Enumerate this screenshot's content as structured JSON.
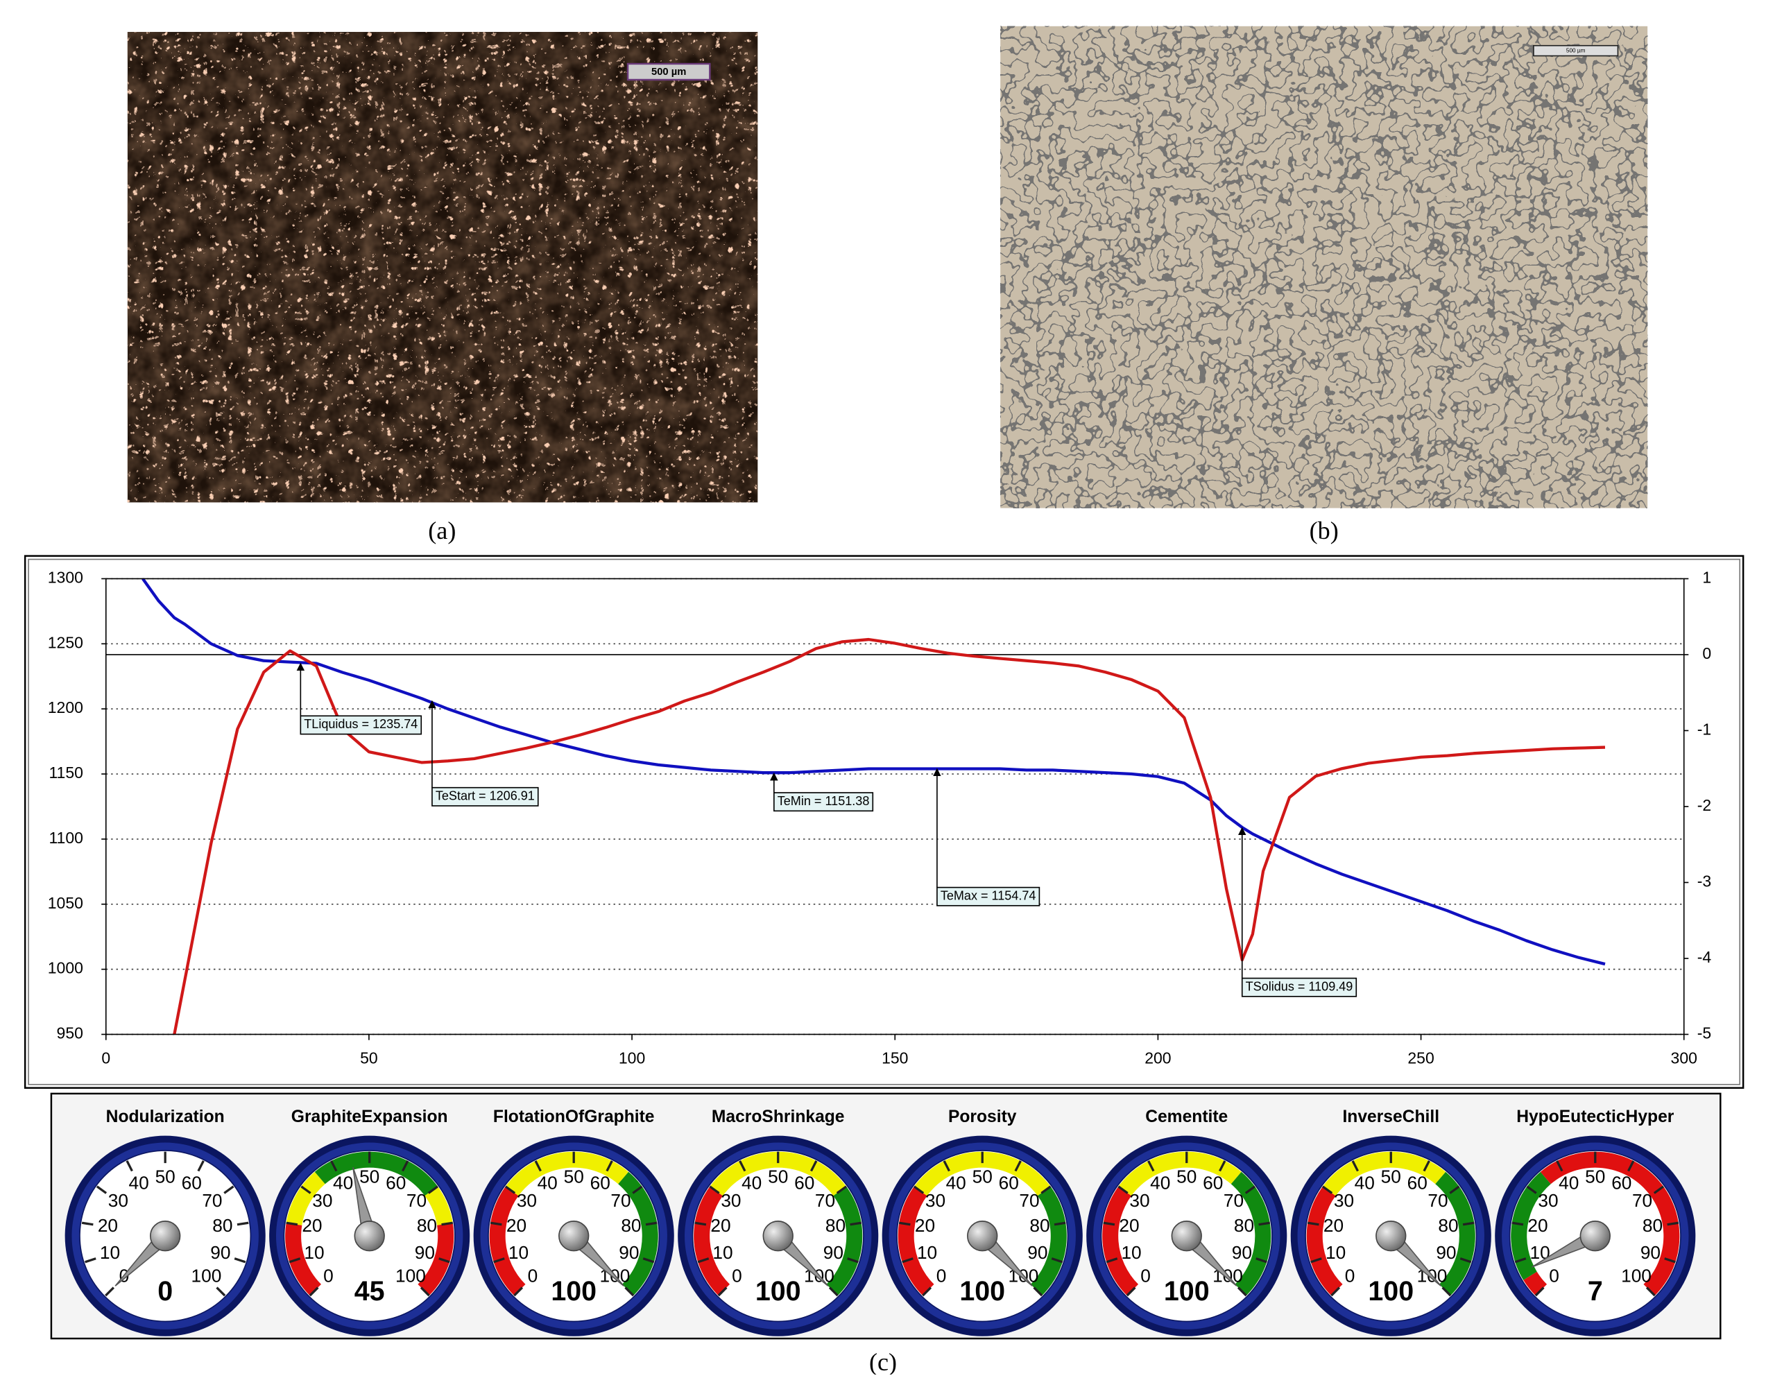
{
  "figure": {
    "panel_labels": [
      "(a)",
      "(b)",
      "(c)"
    ],
    "scale_bars": [
      "500 µm",
      "500 µm"
    ]
  },
  "chart_data": [
    {
      "type": "line",
      "x": [
        7,
        10,
        13,
        15,
        20,
        25,
        30,
        35,
        40,
        45,
        50,
        55,
        60,
        65,
        70,
        75,
        80,
        85,
        90,
        95,
        100,
        105,
        110,
        115,
        120,
        125,
        130,
        135,
        140,
        145,
        150,
        155,
        160,
        165,
        170,
        175,
        180,
        185,
        190,
        195,
        200,
        205,
        210,
        213,
        216,
        218,
        220,
        225,
        230,
        235,
        240,
        245,
        250,
        255,
        260,
        265,
        270,
        275,
        280,
        285
      ],
      "series": [
        {
          "color": "#1010c0",
          "values": [
            1300,
            1283,
            1270,
            1265,
            1250,
            1241,
            1237,
            1236,
            1235,
            1228,
            1222,
            1215,
            1208,
            1200,
            1193,
            1186,
            1180,
            1174,
            1169,
            1164,
            1160,
            1157,
            1155,
            1153,
            1152,
            1151,
            1151,
            1152,
            1153,
            1154,
            1154,
            1154,
            1154,
            1154,
            1154,
            1153,
            1153,
            1152,
            1151,
            1150,
            1148,
            1143,
            1130,
            1118,
            1109,
            1104,
            1100,
            1090,
            1081,
            1073,
            1066,
            1059,
            1052,
            1045,
            1037,
            1030,
            1022,
            1015,
            1009,
            1004
          ]
        },
        {
          "color": "#d01818",
          "axis": "y2",
          "values": [
            null,
            null,
            -5,
            -4.28,
            -2.48,
            -0.98,
            -0.23,
            0.05,
            -0.15,
            -0.98,
            -1.28,
            -1.35,
            -1.42,
            -1.4,
            -1.37,
            -1.3,
            -1.23,
            -1.15,
            -1.06,
            -0.96,
            -0.85,
            -0.75,
            -0.61,
            -0.5,
            -0.36,
            -0.23,
            -0.09,
            0.08,
            0.17,
            0.2,
            0.15,
            0.08,
            0.02,
            -0.02,
            -0.05,
            -0.08,
            -0.11,
            -0.15,
            -0.23,
            -0.33,
            -0.48,
            -0.83,
            -1.88,
            -3.08,
            -4.02,
            -3.68,
            -2.85,
            -1.88,
            -1.6,
            -1.5,
            -1.43,
            -1.39,
            -1.35,
            -1.33,
            -1.3,
            -1.28,
            -1.26,
            -1.24,
            -1.23,
            -1.22
          ]
        }
      ],
      "xlim": [
        0,
        300
      ],
      "xticks": [
        0,
        50,
        100,
        150,
        200,
        250,
        300
      ],
      "ylim": [
        950,
        1300
      ],
      "yticks": [
        950,
        1000,
        1050,
        1100,
        1150,
        1200,
        1250,
        1300
      ],
      "y2lim": [
        -5,
        1
      ],
      "y2ticks": [
        -5,
        -4,
        -3,
        -2,
        -1,
        0,
        1
      ],
      "grid": true,
      "annotations": [
        {
          "text": "TLiquidus = 1235.74",
          "x": 37,
          "y": 1235.74
        },
        {
          "text": "TeStart = 1206.91",
          "x": 62,
          "y": 1206.91
        },
        {
          "text": "TeMin = 1151.38",
          "x": 127,
          "y": 1151.38
        },
        {
          "text": "TeMax = 1154.74",
          "x": 158,
          "y": 1154.74
        },
        {
          "text": "TSolidus = 1109.49",
          "x": 216,
          "y": 1109.49
        }
      ]
    },
    {
      "type": "gauge",
      "categories": [
        "Nodularization",
        "GraphiteExpansion",
        "FlotationOfGraphite",
        "MacroShrinkage",
        "Porosity",
        "Cementite",
        "InverseChill",
        "HypoEutecticHyper"
      ],
      "values": [
        0,
        45,
        100,
        100,
        100,
        100,
        100,
        7
      ],
      "range": [
        0,
        100
      ],
      "ticks": [
        0,
        10,
        20,
        30,
        40,
        50,
        60,
        70,
        80,
        90,
        100
      ],
      "bands": [
        [],
        [
          {
            "from": 0,
            "to": 20,
            "color": "#e01010"
          },
          {
            "from": 20,
            "to": 35,
            "color": "#f0f000"
          },
          {
            "from": 35,
            "to": 70,
            "color": "#108a10"
          },
          {
            "from": 70,
            "to": 80,
            "color": "#f0f000"
          },
          {
            "from": 80,
            "to": 100,
            "color": "#e01010"
          }
        ],
        [
          {
            "from": 0,
            "to": 30,
            "color": "#e01010"
          },
          {
            "from": 30,
            "to": 65,
            "color": "#f0f000"
          },
          {
            "from": 65,
            "to": 100,
            "color": "#108a10"
          }
        ],
        [
          {
            "from": 0,
            "to": 30,
            "color": "#e01010"
          },
          {
            "from": 30,
            "to": 70,
            "color": "#f0f000"
          },
          {
            "from": 70,
            "to": 100,
            "color": "#108a10"
          }
        ],
        [
          {
            "from": 0,
            "to": 30,
            "color": "#e01010"
          },
          {
            "from": 30,
            "to": 70,
            "color": "#f0f000"
          },
          {
            "from": 70,
            "to": 100,
            "color": "#108a10"
          }
        ],
        [
          {
            "from": 0,
            "to": 30,
            "color": "#e01010"
          },
          {
            "from": 30,
            "to": 65,
            "color": "#f0f000"
          },
          {
            "from": 65,
            "to": 100,
            "color": "#108a10"
          }
        ],
        [
          {
            "from": 0,
            "to": 30,
            "color": "#e01010"
          },
          {
            "from": 30,
            "to": 65,
            "color": "#f0f000"
          },
          {
            "from": 65,
            "to": 100,
            "color": "#108a10"
          }
        ],
        [
          {
            "from": 0,
            "to": 5,
            "color": "#e01010"
          },
          {
            "from": 5,
            "to": 35,
            "color": "#108a10"
          },
          {
            "from": 35,
            "to": 100,
            "color": "#e01010"
          }
        ]
      ]
    }
  ]
}
